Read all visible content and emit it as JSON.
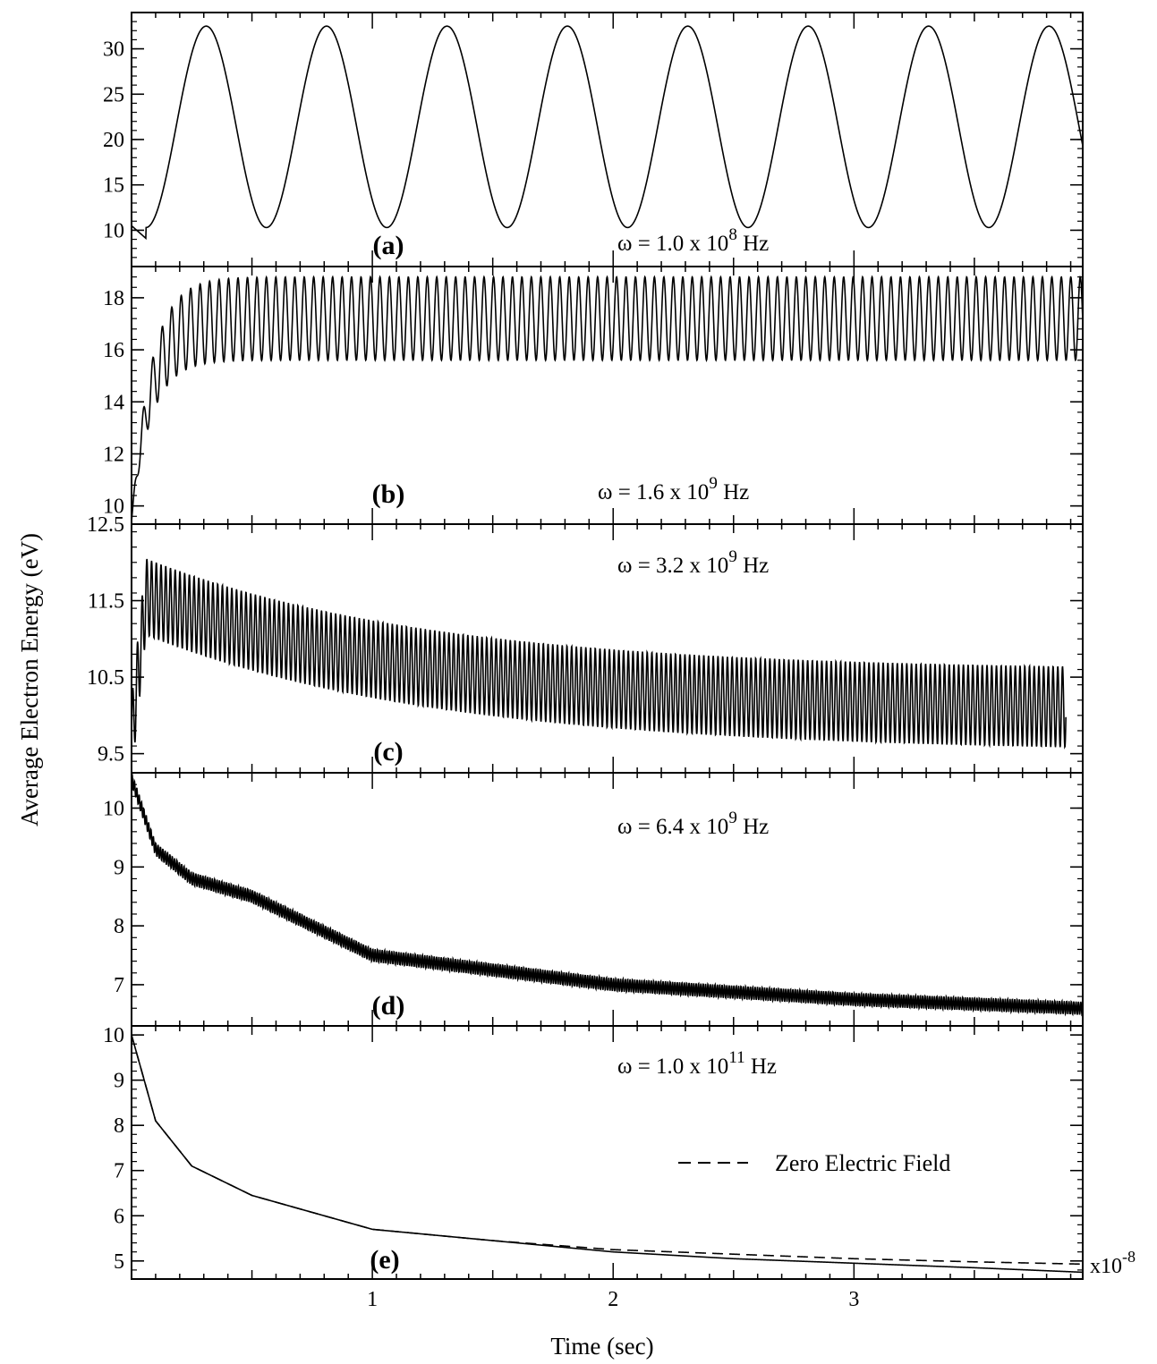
{
  "figure": {
    "ylabel": "Average Electron Energy (eV)",
    "xlabel": "Time  (sec)",
    "x_multiplier": {
      "base": "x10",
      "exponent": "-8"
    },
    "line_color": "#000000"
  },
  "chart_data": [
    {
      "id": "a",
      "type": "line",
      "panel_label": "(a)",
      "annotation": {
        "prefix": "ω = 1.0 x 10",
        "exponent": "8",
        "suffix": " Hz"
      },
      "x_unit_scale": 1e-08,
      "xlim": [
        0,
        3.95
      ],
      "ylim": [
        6,
        34
      ],
      "yticks": [
        10,
        15,
        20,
        25,
        30
      ],
      "series": [
        {
          "style": "solid",
          "model": "oscillation",
          "start": 10.5,
          "mean": 21.4,
          "amplitude": 11.1,
          "period": 0.5,
          "phase_peak_at": 0.31,
          "first_min": 9.1,
          "first_min_at": 0.06
        }
      ]
    },
    {
      "id": "b",
      "type": "line",
      "panel_label": "(b)",
      "annotation": {
        "prefix": "ω = 1.6 x 10",
        "exponent": "9",
        "suffix": " Hz"
      },
      "x_unit_scale": 1e-08,
      "xlim": [
        0,
        3.95
      ],
      "ylim": [
        9.3,
        19.2
      ],
      "yticks": [
        10,
        12,
        14,
        16,
        18
      ],
      "series": [
        {
          "style": "solid",
          "model": "oscillation",
          "start": 9.4,
          "mean": 17.2,
          "amplitude": 1.6,
          "period": 0.0393,
          "rise_time": 0.08
        }
      ]
    },
    {
      "id": "c",
      "type": "line",
      "panel_label": "(c)",
      "annotation": {
        "prefix": "ω = 3.2 x 10",
        "exponent": "9",
        "suffix": " Hz"
      },
      "x_unit_scale": 1e-08,
      "xlim": [
        0,
        3.95
      ],
      "ylim": [
        9.25,
        12.5
      ],
      "yticks": [
        9.5,
        10.5,
        11.5,
        12.5
      ],
      "series": [
        {
          "style": "solid",
          "model": "damped_oscillation",
          "start": 9.7,
          "peak": 11.55,
          "peak_at": 0.06,
          "mean_end": 10.05,
          "amplitude_start": 0.5,
          "amplitude_end": 0.53,
          "period": 0.0196,
          "end_at": 3.88
        }
      ]
    },
    {
      "id": "d",
      "type": "line",
      "panel_label": "(d)",
      "annotation": {
        "prefix": "ω = 6.4 x 10",
        "exponent": "9",
        "suffix": " Hz"
      },
      "x_unit_scale": 1e-08,
      "xlim": [
        0,
        3.95
      ],
      "ylim": [
        6.3,
        10.6
      ],
      "yticks": [
        7,
        8,
        9,
        10
      ],
      "series": [
        {
          "style": "solid",
          "model": "decay_band",
          "start": 10.5,
          "at_0_5": 8.5,
          "at_1": 7.5,
          "at_2": 7.0,
          "end": 6.6,
          "band_width": 0.22
        }
      ]
    },
    {
      "id": "e",
      "type": "line",
      "panel_label": "(e)",
      "annotation": {
        "prefix": "ω = 1.0 x 10",
        "exponent": "11",
        "suffix": " Hz"
      },
      "x_unit_scale": 1e-08,
      "xlim": [
        0,
        3.95
      ],
      "ylim": [
        4.6,
        10.2
      ],
      "yticks": [
        5,
        6,
        7,
        8,
        9,
        10
      ],
      "xticks": [
        1,
        2,
        3
      ],
      "xticklabels": [
        "1",
        "2",
        "3"
      ],
      "legend": {
        "label": "Zero Electric Field",
        "style": "dashed",
        "position": "center-right"
      },
      "series": [
        {
          "style": "solid",
          "model": "decay",
          "points": [
            [
              0,
              10.0
            ],
            [
              0.1,
              8.1
            ],
            [
              0.25,
              7.1
            ],
            [
              0.5,
              6.45
            ],
            [
              1.0,
              5.7
            ],
            [
              1.5,
              5.45
            ],
            [
              2.0,
              5.2
            ],
            [
              2.5,
              5.05
            ],
            [
              3.0,
              4.95
            ],
            [
              3.5,
              4.85
            ],
            [
              3.95,
              4.75
            ]
          ]
        },
        {
          "name": "Zero Electric Field",
          "style": "dashed",
          "model": "decay",
          "points": [
            [
              0,
              10.0
            ],
            [
              0.1,
              8.1
            ],
            [
              0.25,
              7.1
            ],
            [
              0.5,
              6.45
            ],
            [
              1.0,
              5.7
            ],
            [
              1.5,
              5.45
            ],
            [
              2.0,
              5.25
            ],
            [
              2.5,
              5.15
            ],
            [
              3.0,
              5.05
            ],
            [
              3.5,
              4.98
            ],
            [
              3.95,
              4.93
            ]
          ]
        }
      ]
    }
  ]
}
